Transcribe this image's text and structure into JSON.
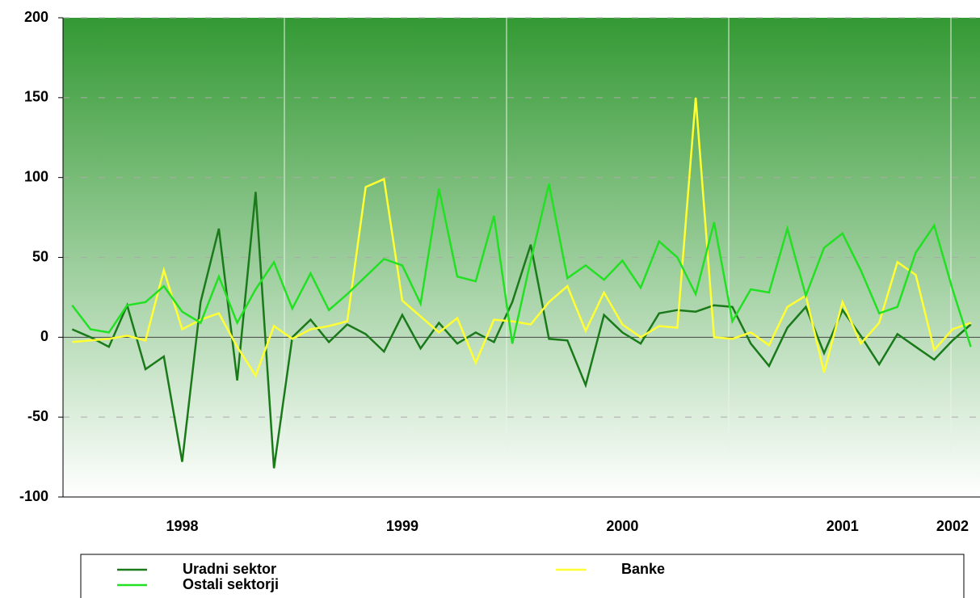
{
  "chart_data": {
    "type": "line",
    "categories": [
      null,
      null,
      null,
      null,
      null,
      null,
      "1998",
      null,
      null,
      null,
      null,
      null,
      null,
      null,
      null,
      null,
      null,
      null,
      "1999",
      null,
      null,
      null,
      null,
      null,
      null,
      null,
      null,
      null,
      null,
      null,
      "2000",
      null,
      null,
      null,
      null,
      null,
      null,
      null,
      null,
      null,
      null,
      null,
      "2001",
      null,
      null,
      null,
      null,
      null,
      "2002",
      null
    ],
    "series": [
      {
        "name": "Uradni sektor",
        "color": "#1a7a1a",
        "values": [
          5,
          0,
          -6,
          20,
          -20,
          -12,
          -78,
          22,
          68,
          -27,
          91,
          -82,
          0,
          11,
          -3,
          8,
          2,
          -9,
          14,
          -7,
          9,
          -4,
          3,
          -3,
          22,
          58,
          -1,
          -2,
          -30,
          14,
          3,
          -4,
          15,
          17,
          16,
          20,
          19,
          -4,
          -18,
          6,
          19,
          -10,
          17,
          1,
          -17,
          2,
          -6,
          -14,
          -2,
          8
        ]
      },
      {
        "name": "Banke",
        "color": "#ffff33",
        "values": [
          -3,
          -2,
          -1,
          1,
          -2,
          42,
          5,
          11,
          15,
          -6,
          -24,
          7,
          -1,
          5,
          7,
          10,
          94,
          99,
          23,
          13,
          3,
          12,
          -16,
          11,
          10,
          8,
          22,
          32,
          4,
          28,
          8,
          0,
          7,
          6,
          150,
          0,
          -1,
          3,
          -5,
          19,
          26,
          -22,
          22,
          -4,
          9,
          47,
          39,
          -8,
          5,
          9
        ]
      },
      {
        "name": "Ostali sektorji",
        "color": "#22e022",
        "values": [
          20,
          5,
          3,
          20,
          22,
          32,
          16,
          9,
          38,
          9,
          30,
          47,
          18,
          40,
          17,
          27,
          38,
          49,
          45,
          21,
          93,
          38,
          35,
          76,
          -4,
          48,
          96,
          37,
          45,
          36,
          48,
          31,
          60,
          50,
          27,
          72,
          10,
          30,
          28,
          68,
          26,
          56,
          65,
          42,
          15,
          19,
          53,
          70,
          30,
          -6
        ]
      }
    ],
    "ylim": [
      -100,
      200
    ],
    "yticks": [
      -100,
      -50,
      0,
      50,
      100,
      150,
      200
    ],
    "grid": true,
    "legend": "bottom"
  }
}
